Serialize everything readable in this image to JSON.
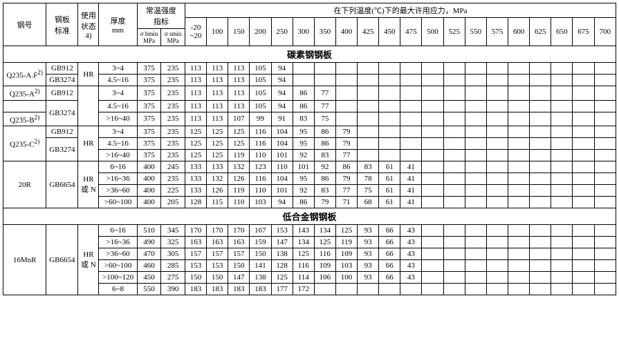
{
  "headers": {
    "steel_no": "钢号",
    "plate_std": "钢板\n标准",
    "use_state": "使用\n状态\n4)",
    "thickness": "厚度\nmm",
    "room_strength": "常温强度\n指标",
    "sigma_b": "σ bmin\nMPa",
    "sigma_s": "σ smin\nMPa",
    "max_stress": "在下列温度(℃)下的最大许用应力，MPa",
    "temps": [
      "-20\n~20",
      "100",
      "150",
      "200",
      "250",
      "300",
      "350",
      "400",
      "425",
      "450",
      "475",
      "500",
      "525",
      "550",
      "575",
      "600",
      "625",
      "650",
      "675",
      "700"
    ]
  },
  "section1_title": "碳素钢钢板",
  "section2_title": "低合金钢钢板",
  "rows": [
    {
      "steel": "Q235-A.F",
      "steel_sup": "2)",
      "std": "GB912",
      "state": "HR",
      "thick": "3~4",
      "sb": "375",
      "ss": "235",
      "v": [
        "113",
        "113",
        "113",
        "105",
        "94",
        "",
        "",
        "",
        "",
        "",
        "",
        "",
        "",
        "",
        "",
        "",
        "",
        "",
        "",
        ""
      ]
    },
    {
      "steel": "",
      "std": "GB3274",
      "state": "",
      "thick": "4.5~16",
      "sb": "375",
      "ss": "235",
      "v": [
        "113",
        "113",
        "113",
        "105",
        "94",
        "",
        "",
        "",
        "",
        "",
        "",
        "",
        "",
        "",
        "",
        "",
        "",
        "",
        "",
        ""
      ]
    },
    {
      "steel": "Q235-A",
      "steel_sup": "2)",
      "std": "GB912",
      "state": "",
      "thick": "3~4",
      "sb": "375",
      "ss": "235",
      "v": [
        "113",
        "113",
        "113",
        "105",
        "94",
        "86",
        "77",
        "",
        "",
        "",
        "",
        "",
        "",
        "",
        "",
        "",
        "",
        "",
        "",
        ""
      ]
    },
    {
      "steel": "",
      "std": "GB3274",
      "state": "HR",
      "thick": "4.5~16",
      "sb": "375",
      "ss": "235",
      "v": [
        "113",
        "113",
        "113",
        "105",
        "94",
        "86",
        "77",
        "",
        "",
        "",
        "",
        "",
        "",
        "",
        "",
        "",
        "",
        "",
        "",
        ""
      ]
    },
    {
      "steel": "Q235-B",
      "steel_sup": "2)",
      "std": "",
      "state": "",
      "thick": ">16~40",
      "sb": "375",
      "ss": "235",
      "v": [
        "113",
        "113",
        "107",
        "99",
        "91",
        "83",
        "75",
        "",
        "",
        "",
        "",
        "",
        "",
        "",
        "",
        "",
        "",
        "",
        "",
        ""
      ]
    },
    {
      "steel": "",
      "std": "GB912",
      "state": "",
      "thick": "3~4",
      "sb": "375",
      "ss": "235",
      "v": [
        "125",
        "125",
        "125",
        "116",
        "104",
        "95",
        "86",
        "79",
        "",
        "",
        "",
        "",
        "",
        "",
        "",
        "",
        "",
        "",
        "",
        ""
      ]
    },
    {
      "steel": "Q235-C",
      "steel_sup": "2)",
      "std": "",
      "state": "",
      "thick": "4.5~16",
      "sb": "375",
      "ss": "235",
      "v": [
        "125",
        "125",
        "125",
        "116",
        "104",
        "95",
        "86",
        "79",
        "",
        "",
        "",
        "",
        "",
        "",
        "",
        "",
        "",
        "",
        "",
        ""
      ]
    },
    {
      "steel": "",
      "std": "GB3274",
      "state": "HR",
      "thick": ">16~40",
      "sb": "375",
      "ss": "235",
      "v": [
        "125",
        "125",
        "119",
        "110",
        "101",
        "92",
        "83",
        "77",
        "",
        "",
        "",
        "",
        "",
        "",
        "",
        "",
        "",
        "",
        "",
        ""
      ]
    },
    {
      "steel": "",
      "std": "",
      "state": "",
      "thick": "6~16",
      "sb": "400",
      "ss": "245",
      "v": [
        "133",
        "133",
        "132",
        "123",
        "110",
        "101",
        "92",
        "86",
        "83",
        "61",
        "41",
        "",
        "",
        "",
        "",
        "",
        "",
        "",
        "",
        ""
      ]
    },
    {
      "steel": "20R",
      "std": "GB6654",
      "state": "HR",
      "thick": ">16~36",
      "sb": "400",
      "ss": "235",
      "v": [
        "133",
        "132",
        "126",
        "116",
        "104",
        "95",
        "86",
        "79",
        "78",
        "61",
        "41",
        "",
        "",
        "",
        "",
        "",
        "",
        "",
        "",
        ""
      ]
    },
    {
      "steel": "",
      "std": "",
      "state": "或 N",
      "thick": ">36~60",
      "sb": "400",
      "ss": "225",
      "v": [
        "133",
        "126",
        "119",
        "110",
        "101",
        "92",
        "83",
        "77",
        "75",
        "61",
        "41",
        "",
        "",
        "",
        "",
        "",
        "",
        "",
        "",
        ""
      ]
    },
    {
      "steel": "",
      "std": "",
      "state": "",
      "thick": ">60~100",
      "sb": "400",
      "ss": "205",
      "v": [
        "128",
        "115",
        "110",
        "103",
        "94",
        "86",
        "79",
        "71",
        "68",
        "61",
        "41",
        "",
        "",
        "",
        "",
        "",
        "",
        "",
        "",
        ""
      ]
    },
    {
      "steel": "",
      "std": "",
      "state": "",
      "thick": "6~16",
      "sb": "510",
      "ss": "345",
      "v": [
        "170",
        "170",
        "170",
        "167",
        "153",
        "143",
        "134",
        "125",
        "93",
        "66",
        "43",
        "",
        "",
        "",
        "",
        "",
        "",
        "",
        "",
        ""
      ]
    },
    {
      "steel": "",
      "std": "",
      "state": "",
      "thick": ">16~36",
      "sb": "490",
      "ss": "325",
      "v": [
        "163",
        "163",
        "163",
        "159",
        "147",
        "134",
        "125",
        "119",
        "93",
        "66",
        "43",
        "",
        "",
        "",
        "",
        "",
        "",
        "",
        "",
        ""
      ]
    },
    {
      "steel": "16MnR",
      "std": "GB6654",
      "state": "HR",
      "thick": ">36~60",
      "sb": "470",
      "ss": "305",
      "v": [
        "157",
        "157",
        "157",
        "150",
        "138",
        "125",
        "116",
        "109",
        "93",
        "66",
        "43",
        "",
        "",
        "",
        "",
        "",
        "",
        "",
        "",
        ""
      ]
    },
    {
      "steel": "",
      "std": "",
      "state": "或 N",
      "thick": ">60~100",
      "sb": "460",
      "ss": "285",
      "v": [
        "153",
        "153",
        "150",
        "141",
        "128",
        "116",
        "109",
        "103",
        "93",
        "66",
        "43",
        "",
        "",
        "",
        "",
        "",
        "",
        "",
        "",
        ""
      ]
    },
    {
      "steel": "",
      "std": "",
      "state": "",
      "thick": ">100~120",
      "sb": "450",
      "ss": "275",
      "v": [
        "150",
        "150",
        "147",
        "138",
        "125",
        "114",
        "106",
        "100",
        "93",
        "66",
        "43",
        "",
        "",
        "",
        "",
        "",
        "",
        "",
        "",
        ""
      ]
    },
    {
      "steel": "",
      "std": "",
      "state": "",
      "thick": "6~8",
      "sb": "550",
      "ss": "390",
      "v": [
        "183",
        "183",
        "183",
        "183",
        "177",
        "172",
        "",
        "",
        "",
        "",
        "",
        "",
        "",
        "",
        "",
        "",
        "",
        "",
        "",
        ""
      ]
    }
  ]
}
